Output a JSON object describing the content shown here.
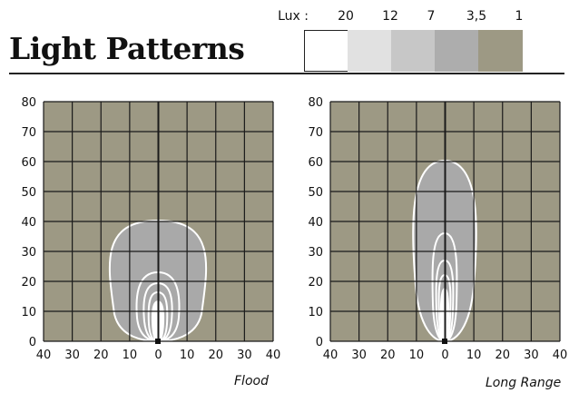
{
  "title": "Light Patterns",
  "legend": {
    "label": "Lux :",
    "levels": [
      {
        "value": "20",
        "color": "#ffffff"
      },
      {
        "value": "12",
        "color": "#e1e1e1"
      },
      {
        "value": "7",
        "color": "#c7c7c7"
      },
      {
        "value": "3,5",
        "color": "#adadad"
      },
      {
        "value": "1",
        "color": "#9d9984"
      }
    ]
  },
  "panels": [
    {
      "caption": "Flood",
      "y_ticks": [
        "80",
        "70",
        "60",
        "50",
        "40",
        "30",
        "20",
        "10",
        "0"
      ],
      "x_ticks": [
        "40",
        "30",
        "20",
        "10",
        "0",
        "10",
        "20",
        "30",
        "40"
      ]
    },
    {
      "caption": "Long Range",
      "y_ticks": [
        "80",
        "70",
        "60",
        "50",
        "40",
        "30",
        "20",
        "10",
        "0"
      ],
      "x_ticks": [
        "40",
        "30",
        "20",
        "10",
        "0",
        "10",
        "20",
        "30",
        "40"
      ]
    }
  ],
  "colors": {
    "background": "#9d9984",
    "grid": "#1a1a1a",
    "contour_fill": "#a9a9a9",
    "contour_line": "#ffffff"
  }
}
